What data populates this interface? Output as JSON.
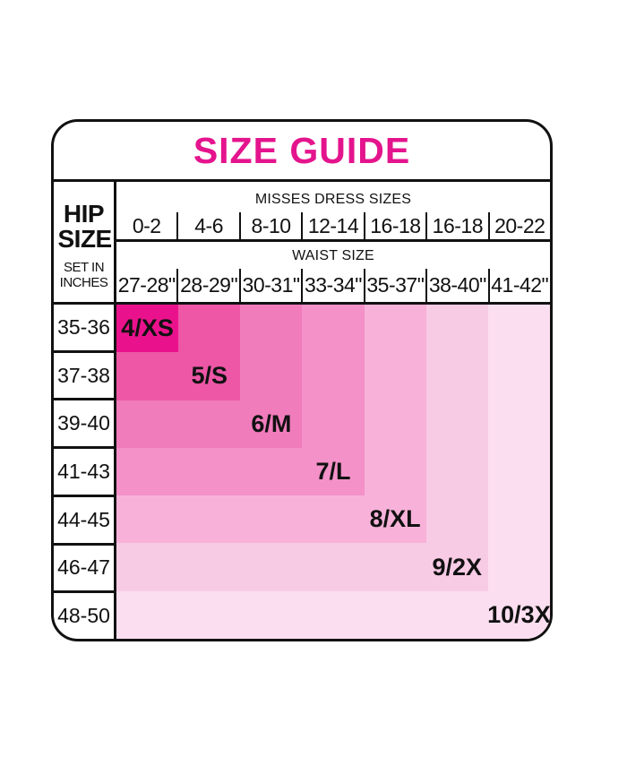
{
  "title": "SIZE GUIDE",
  "accent_color": "#e4148d",
  "border_color": "#111111",
  "header": {
    "hip_title": "HIP SIZE",
    "hip_subtitle": "SET IN INCHES",
    "dress_group_label": "MISSES DRESS SIZES",
    "waist_group_label": "WAIST SIZE"
  },
  "chart_data": {
    "type": "heatmap",
    "title": "SIZE GUIDE",
    "row_axis_label": "HIP SIZE SET IN INCHES",
    "column_axis_labels": [
      "MISSES DRESS SIZES",
      "WAIST SIZE"
    ],
    "rows_hip_sizes": [
      "35-36",
      "37-38",
      "39-40",
      "41-43",
      "44-45",
      "46-47",
      "48-50"
    ],
    "columns_dress_sizes": [
      "0-2",
      "4-6",
      "8-10",
      "12-14",
      "16-18",
      "16-18",
      "20-22"
    ],
    "columns_waist_sizes": [
      "27-28\"",
      "28-29\"",
      "30-31\"",
      "33-34\"",
      "35-37\"",
      "38-40\"",
      "41-42\""
    ],
    "legend_position": "none",
    "grid": false,
    "sizes": [
      {
        "label": "4/XS",
        "span": 1,
        "color": "#ea128c",
        "hip": "35-36",
        "dress": "0-2",
        "waist": "27-28\""
      },
      {
        "label": "5/S",
        "span": 2,
        "color": "#ed57a6",
        "hip": "37-38",
        "dress": "4-6",
        "waist": "28-29\""
      },
      {
        "label": "6/M",
        "span": 3,
        "color": "#f07cbc",
        "hip": "39-40",
        "dress": "8-10",
        "waist": "30-31\""
      },
      {
        "label": "7/L",
        "span": 4,
        "color": "#f391c8",
        "hip": "41-43",
        "dress": "12-14",
        "waist": "33-34\""
      },
      {
        "label": "8/XL",
        "span": 5,
        "color": "#f8b2d9",
        "hip": "44-45",
        "dress": "16-18",
        "waist": "35-37\""
      },
      {
        "label": "9/2X",
        "span": 6,
        "color": "#f8cbe5",
        "hip": "46-47",
        "dress": "16-18",
        "waist": "38-40\""
      },
      {
        "label": "10/3X",
        "span": 7,
        "color": "#fbdeef",
        "hip": "48-50",
        "dress": "20-22",
        "waist": "41-42\""
      }
    ]
  }
}
